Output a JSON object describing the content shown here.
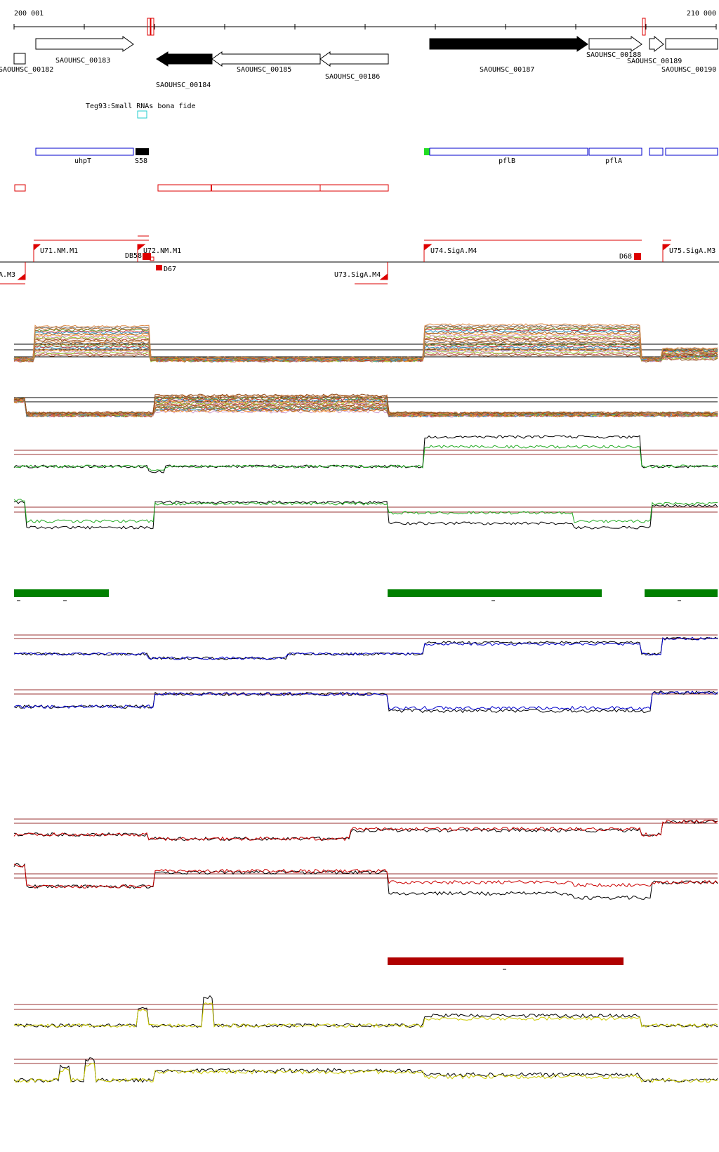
{
  "coordinates": {
    "start_label": "200 001",
    "end_label": "210 000"
  },
  "genes": [
    {
      "id": "SAOUHSC_00182",
      "label": "SAOUHSC_00182",
      "strand": "+",
      "filled": false
    },
    {
      "id": "SAOUHSC_00183",
      "label": "SAOUHSC_00183",
      "strand": "+",
      "filled": false
    },
    {
      "id": "SAOUHSC_00184",
      "label": "SAOUHSC_00184",
      "strand": "-",
      "filled": true
    },
    {
      "id": "SAOUHSC_00185",
      "label": "SAOUHSC_00185",
      "strand": "-",
      "filled": false
    },
    {
      "id": "SAOUHSC_00186",
      "label": "SAOUHSC_00186",
      "strand": "-",
      "filled": false
    },
    {
      "id": "SAOUHSC_00187",
      "label": "SAOUHSC_00187",
      "strand": "+",
      "filled": true
    },
    {
      "id": "SAOUHSC_00188",
      "label": "SAOUHSC_00188",
      "strand": "+",
      "filled": false
    },
    {
      "id": "SAOUHSC_00189",
      "label": "SAOUHSC_00189",
      "strand": "+",
      "filled": false
    },
    {
      "id": "SAOUHSC_00190",
      "label": "SAOUHSC_00190",
      "strand": "+",
      "filled": false
    }
  ],
  "small_rna_track": {
    "label": "Teg93:Small RNAs bona fide"
  },
  "annotation_track": [
    {
      "label": "uhpT",
      "style": "outline"
    },
    {
      "label": "S58",
      "style": "filled"
    },
    {
      "label": "pflB",
      "style": "outline"
    },
    {
      "label": "pflA",
      "style": "outline"
    }
  ],
  "transcription_units": [
    {
      "label": "U71.NM.M1",
      "strand": "+"
    },
    {
      "label": "U72.NM.M1",
      "strand": "+"
    },
    {
      "label": "U74.SigA.M4",
      "strand": "+"
    },
    {
      "label": "U75.SigA.M3",
      "strand": "+"
    },
    {
      "label": "A.M3",
      "strand": "-"
    },
    {
      "label": "U73.SigA.M4",
      "strand": "-"
    }
  ],
  "downshift_markers": [
    {
      "label": "DB58"
    },
    {
      "label": "D67"
    },
    {
      "label": "D68"
    }
  ],
  "colors": {
    "gene_outline": "#000000",
    "annotation_outline": "#0000cc",
    "annotation_start": "#22dd22",
    "operon_box": "#dd0000",
    "small_rna": "#22cccc",
    "segment_green": "#008000",
    "segment_red": "#b00000",
    "track_blue": "#0000cc",
    "track_red": "#cc0000",
    "track_yellow": "#cccc00",
    "track_green": "#22aa22",
    "threshold": "#993333"
  }
}
